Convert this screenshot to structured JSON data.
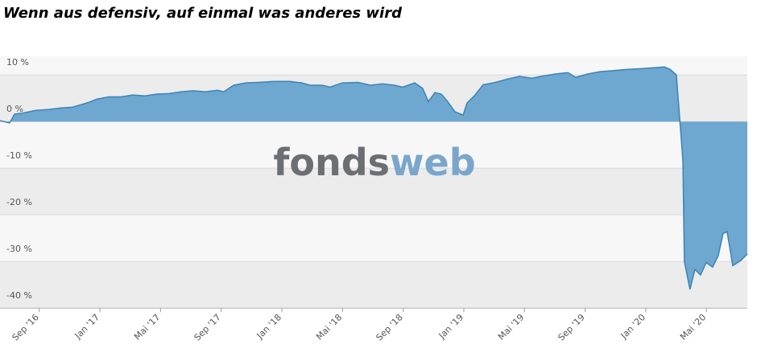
{
  "chart_data": {
    "type": "area",
    "title": "Wenn aus defensiv, auf einmal was anderes wird",
    "watermark": [
      "fonds",
      "web"
    ],
    "color": "#6ea7cf",
    "line_color": "#3b83b6",
    "grid": true,
    "xlim": [
      2016.451,
      2020.558
    ],
    "ylim": [
      -40,
      14
    ],
    "yticks": [
      {
        "value": 10,
        "label": "10 %"
      },
      {
        "value": 0,
        "label": "0 %"
      },
      {
        "value": -10,
        "label": "-10 %"
      },
      {
        "value": -20,
        "label": "-20 %"
      },
      {
        "value": -30,
        "label": "-30 %"
      },
      {
        "value": -40,
        "label": "-40 %"
      }
    ],
    "xticks": [
      {
        "value": 2016.667,
        "label": "Sep '16"
      },
      {
        "value": 2017,
        "label": "Jan '17"
      },
      {
        "value": 2017.333,
        "label": "Mai '17"
      },
      {
        "value": 2017.667,
        "label": "Sep '17"
      },
      {
        "value": 2018,
        "label": "Jan '18"
      },
      {
        "value": 2018.333,
        "label": "Mai '18"
      },
      {
        "value": 2018.667,
        "label": "Sep '18"
      },
      {
        "value": 2019,
        "label": "Jan '19"
      },
      {
        "value": 2019.333,
        "label": "Mai '19"
      },
      {
        "value": 2019.667,
        "label": "Sep '19"
      },
      {
        "value": 2020,
        "label": "Jan '20"
      },
      {
        "value": 2020.333,
        "label": "Mai '20"
      }
    ],
    "x": [
      2016.451,
      2016.504,
      2016.531,
      2016.584,
      2016.65,
      2016.717,
      2016.783,
      2016.85,
      2016.894,
      2016.938,
      2016.982,
      2017.049,
      2017.115,
      2017.181,
      2017.248,
      2017.314,
      2017.381,
      2017.447,
      2017.513,
      2017.58,
      2017.646,
      2017.681,
      2017.735,
      2017.801,
      2017.867,
      2017.956,
      2018.044,
      2018.111,
      2018.155,
      2018.221,
      2018.265,
      2018.332,
      2018.42,
      2018.487,
      2018.553,
      2018.619,
      2018.664,
      2018.73,
      2018.774,
      2018.805,
      2018.841,
      2018.876,
      2018.907,
      2018.951,
      2018.996,
      2019.018,
      2019.062,
      2019.106,
      2019.173,
      2019.239,
      2019.305,
      2019.372,
      2019.438,
      2019.504,
      2019.571,
      2019.615,
      2019.681,
      2019.748,
      2019.814,
      2019.903,
      2019.991,
      2020.102,
      2020.133,
      2020.168,
      2020.204,
      2020.212,
      2020.243,
      2020.27,
      2020.301,
      2020.332,
      2020.367,
      2020.398,
      2020.425,
      2020.447,
      2020.478,
      2020.522,
      2020.558
    ],
    "values": [
      0.2,
      -0.3,
      1.6,
      1.9,
      2.4,
      2.6,
      2.9,
      3.1,
      3.6,
      4.1,
      4.8,
      5.3,
      5.3,
      5.7,
      5.5,
      5.9,
      6.0,
      6.4,
      6.6,
      6.4,
      6.7,
      6.4,
      7.8,
      8.3,
      8.4,
      8.6,
      8.6,
      8.3,
      7.8,
      7.8,
      7.4,
      8.3,
      8.4,
      7.8,
      8.1,
      7.8,
      7.4,
      8.3,
      7.1,
      4.3,
      6.2,
      5.9,
      4.5,
      2.1,
      1.4,
      4.0,
      5.7,
      7.9,
      8.4,
      9.1,
      9.7,
      9.3,
      9.8,
      10.2,
      10.5,
      9.5,
      10.2,
      10.7,
      10.9,
      11.2,
      11.4,
      11.7,
      11.2,
      10.0,
      -8.4,
      -30.0,
      -36.0,
      -31.7,
      -32.9,
      -30.2,
      -31.2,
      -28.8,
      -24.0,
      -23.6,
      -30.9,
      -29.8,
      -28.4
    ]
  }
}
